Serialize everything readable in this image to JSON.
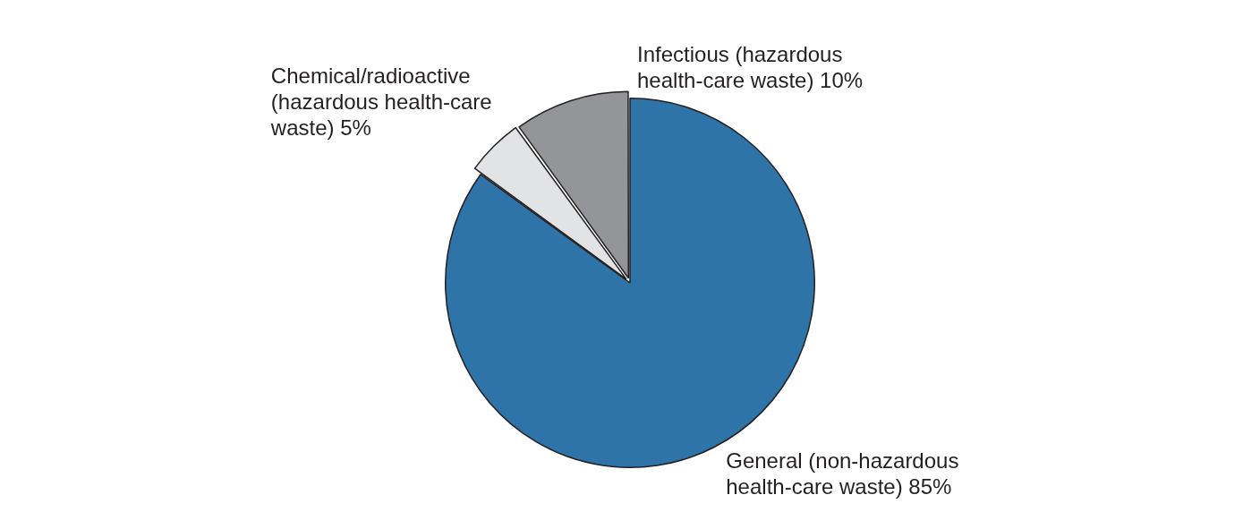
{
  "chart_data": {
    "type": "pie",
    "categories": [
      "General (non-hazardous health-care waste)",
      "Chemical/radioactive (hazardous health-care waste)",
      "Infectious (hazardous health-care waste)"
    ],
    "values": [
      85,
      5,
      10
    ],
    "value_labels": [
      "85%",
      "5%",
      "10%"
    ],
    "colors": [
      "#2e74a8",
      "#e2e3e5",
      "#939598"
    ],
    "legend": false
  }
}
